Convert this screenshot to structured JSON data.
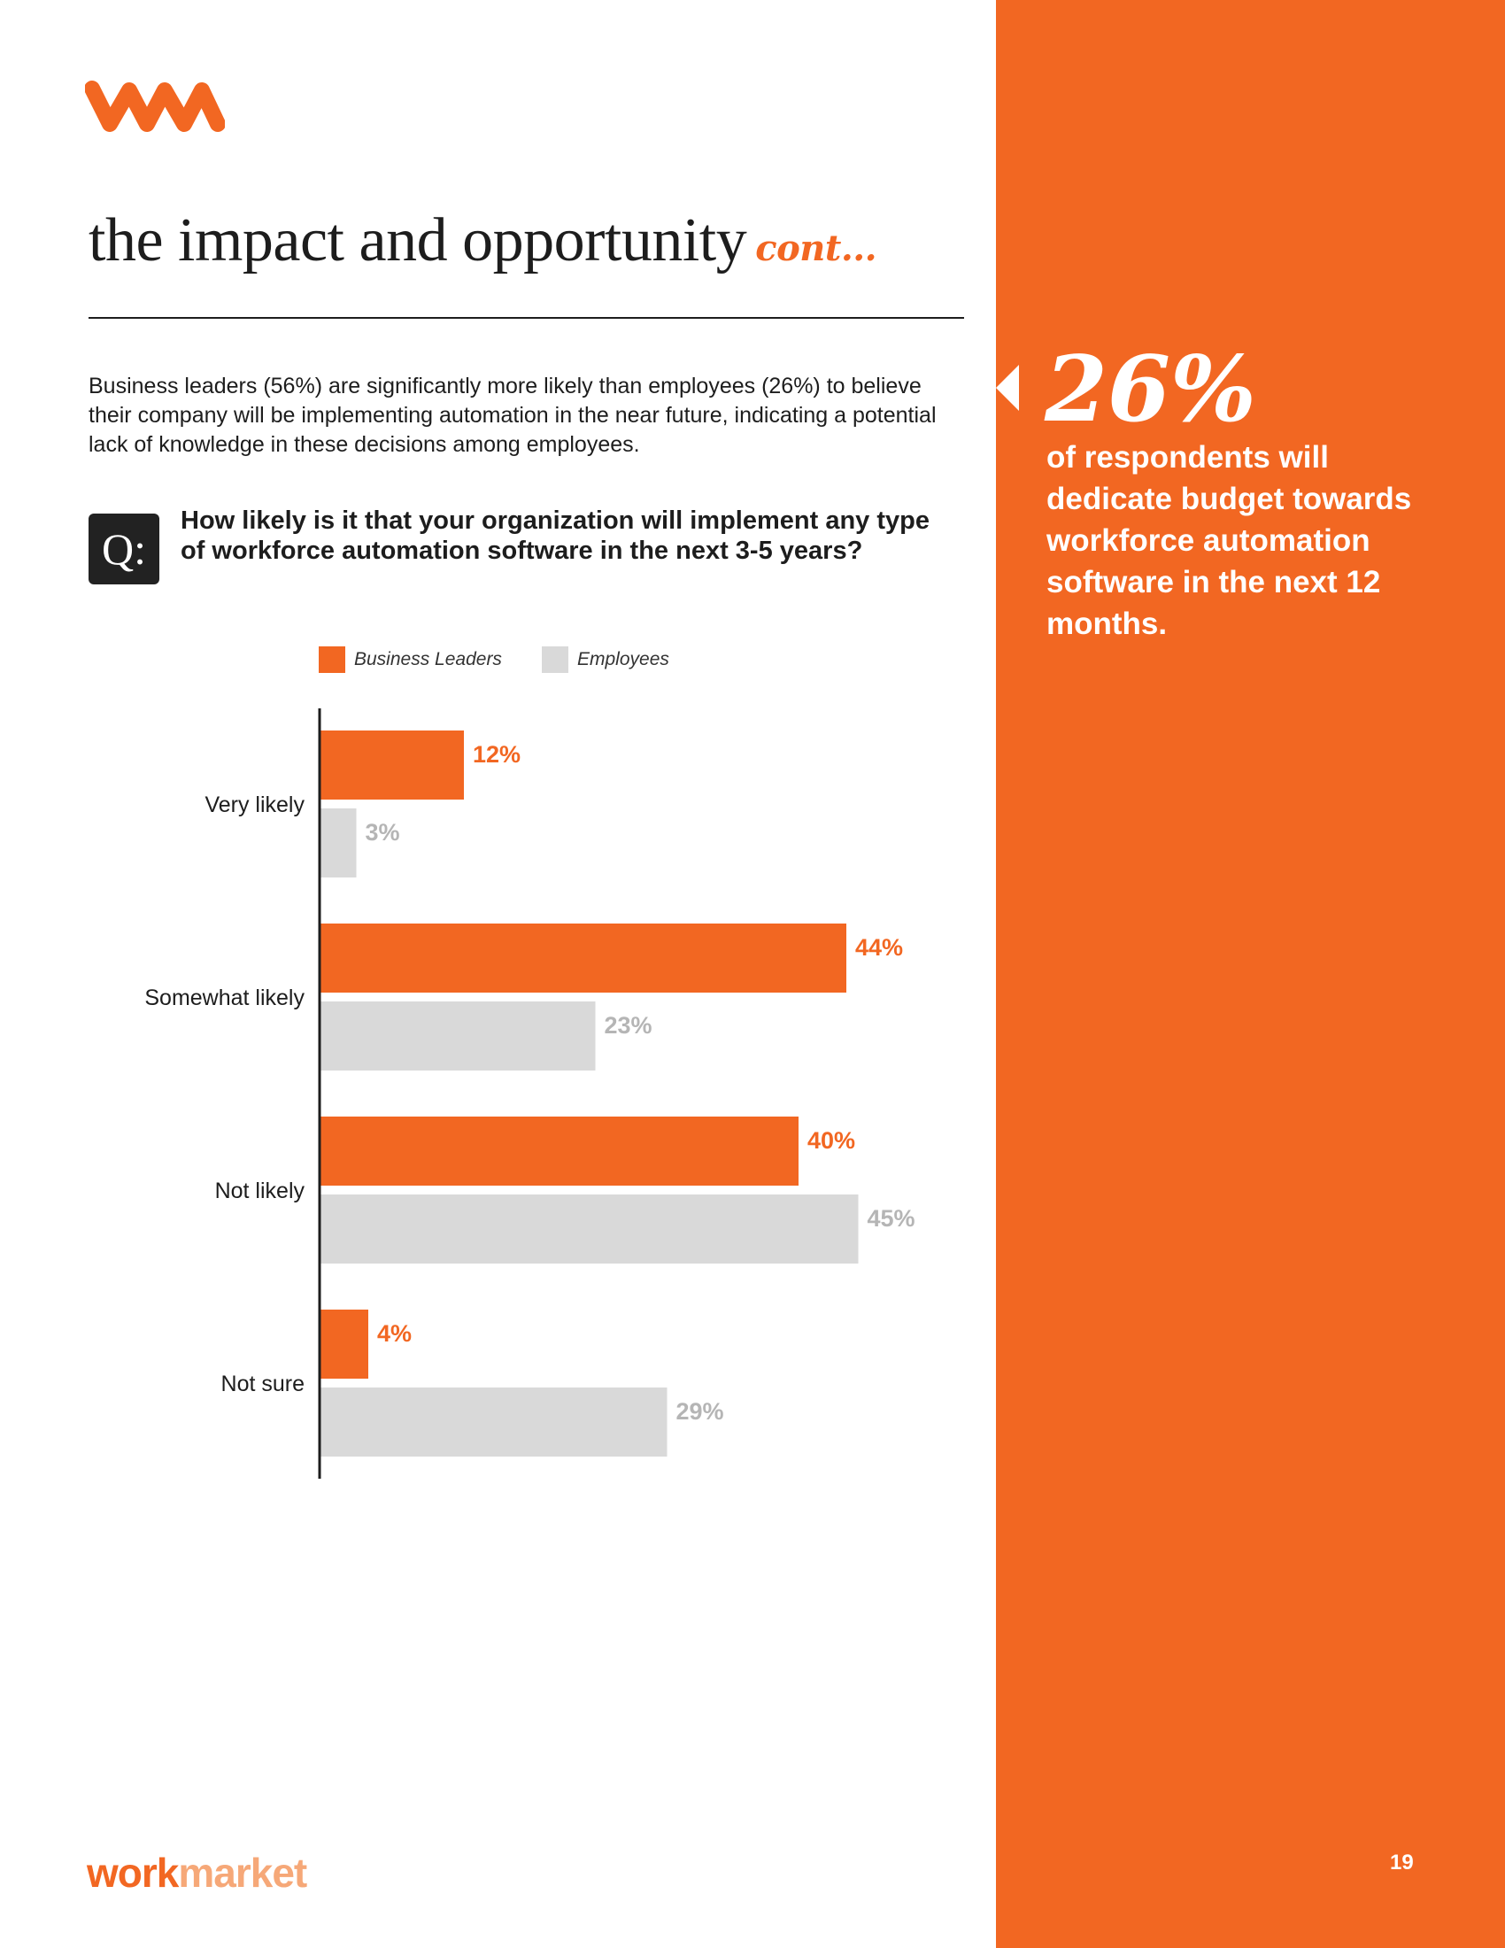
{
  "header": {
    "title": "the impact and opportunity",
    "title_suffix": "cont..."
  },
  "intro": "Business leaders (56%) are significantly more likely than employees (26%) to believe their company will be implementing automation in the near future, indicating a potential lack of knowledge in these decisions among employees.",
  "question": {
    "badge": "Q:",
    "text": "How likely is it that your organization will implement any type of workforce automation software in the next 3-5 years?"
  },
  "colors": {
    "accent": "#f26722",
    "employees": "#d9d9d9",
    "employees_label": "#b5b5b5",
    "text": "#1d1d1d"
  },
  "chart_data": {
    "type": "bar",
    "orientation": "horizontal",
    "categories": [
      "Very likely",
      "Somewhat likely",
      "Not likely",
      "Not sure"
    ],
    "series": [
      {
        "name": "Business Leaders",
        "values": [
          12,
          44,
          40,
          4
        ],
        "labels": [
          "12%",
          "44%",
          "40%",
          "4%"
        ]
      },
      {
        "name": "Employees",
        "values": [
          3,
          23,
          45,
          29
        ],
        "labels": [
          "3%",
          "23%",
          "45%",
          "29%"
        ]
      }
    ],
    "xlim": [
      0,
      50
    ],
    "unit": "%",
    "title": "",
    "xlabel": "",
    "ylabel": "",
    "legend": "top"
  },
  "sidebar": {
    "stat": "26%",
    "text": "of respondents will dedicate budget towards workforce automation software in the next 12 months."
  },
  "footer": {
    "brand_work": "work",
    "brand_market": "market",
    "page": "19"
  }
}
